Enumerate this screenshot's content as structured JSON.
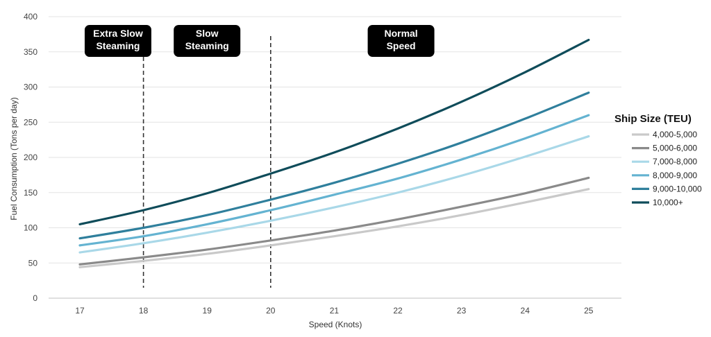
{
  "chart_data": {
    "type": "line",
    "xlabel": "Speed (Knots)",
    "ylabel": "Fuel Consumption (Tons per day)",
    "x": [
      17,
      18,
      19,
      20,
      21,
      22,
      23,
      24,
      25
    ],
    "xlim": [
      17,
      25
    ],
    "ylim": [
      0,
      400
    ],
    "yticks": [
      0,
      50,
      100,
      150,
      200,
      250,
      300,
      350,
      400
    ],
    "grid": "horizontal",
    "legend": {
      "title": "Ship Size (TEU)",
      "placement": "right"
    },
    "series": [
      {
        "name": "4,000-5,000",
        "color": "#c9c9c9",
        "values": [
          44,
          53,
          63,
          75,
          88,
          102,
          118,
          136,
          155
        ]
      },
      {
        "name": "5,000-6,000",
        "color": "#8a8a8a",
        "values": [
          48,
          58,
          69,
          82,
          96,
          112,
          130,
          149,
          171
        ]
      },
      {
        "name": "7,000-8,000",
        "color": "#a9d8e8",
        "values": [
          65,
          78,
          93,
          110,
          129,
          150,
          174,
          201,
          230
        ]
      },
      {
        "name": "8,000-9,000",
        "color": "#64b3d1",
        "values": [
          75,
          88,
          105,
          125,
          147,
          170,
          197,
          227,
          260
        ]
      },
      {
        "name": "9,000-10,000",
        "color": "#2f7f9c",
        "values": [
          85,
          100,
          118,
          140,
          164,
          191,
          221,
          255,
          292
        ]
      },
      {
        "name": "10,000+",
        "color": "#0f4c5a",
        "values": [
          105,
          125,
          149,
          177,
          207,
          241,
          279,
          321,
          367
        ]
      }
    ],
    "dividers": [
      18,
      20
    ],
    "zones": [
      {
        "label": "Extra Slow\nSteaming",
        "x_center": 17.6
      },
      {
        "label": "Slow\nSteaming",
        "x_center": 19.0
      },
      {
        "label": "Normal\nSpeed",
        "x_center": 22.05
      }
    ]
  }
}
